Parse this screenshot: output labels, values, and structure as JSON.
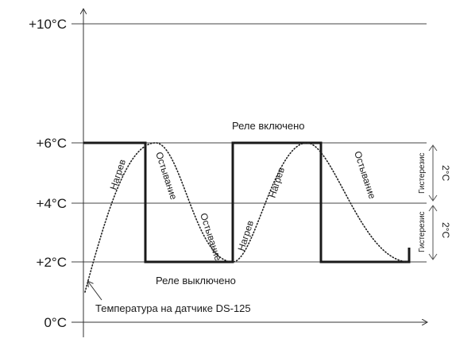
{
  "axis": {
    "ticks": [
      {
        "label": "+10°C",
        "value": 10
      },
      {
        "label": "+6°C",
        "value": 6
      },
      {
        "label": "+4°C",
        "value": 4
      },
      {
        "label": "+2°C",
        "value": 2
      },
      {
        "label": "0°C",
        "value": 0
      }
    ]
  },
  "relay": {
    "on_label": "Реле включено",
    "off_label": "Реле выключено"
  },
  "sensor_label": "Температура на датчике DS-125",
  "curve_labels": {
    "heat_1": "Нагрев",
    "cool_1": "Остывание",
    "cool_2": "Остывание",
    "heat_2": "Нагрев",
    "heat_3": "Нагрев",
    "cool_3": "Остывание"
  },
  "hysteresis": {
    "label": "Гистерезис",
    "value": "2°C"
  }
}
